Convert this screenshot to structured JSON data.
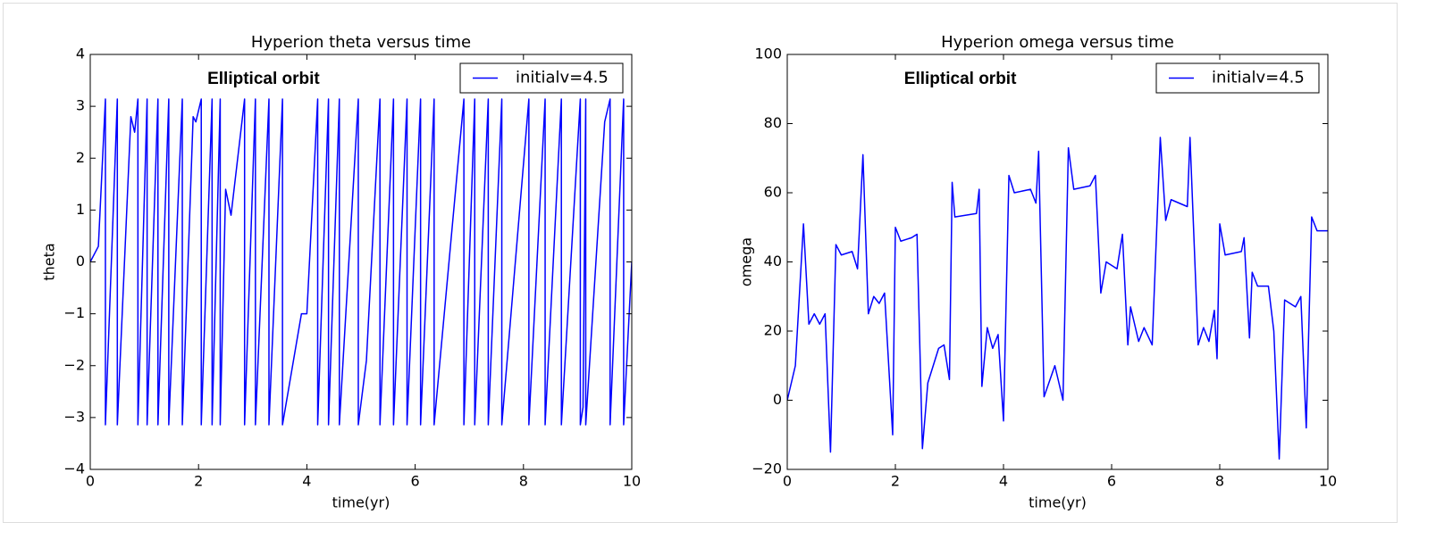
{
  "chart_data": [
    {
      "type": "line",
      "title": "Hyperion theta versus time",
      "xlabel": "time(yr)",
      "ylabel": "theta",
      "annotation": "Elliptical orbit",
      "legend": "upper right",
      "xlim": [
        0,
        10
      ],
      "ylim": [
        -4,
        4
      ],
      "xticks": [
        0,
        2,
        4,
        6,
        8,
        10
      ],
      "yticks": [
        {
          "value": -4,
          "label": "−4"
        },
        {
          "value": -3,
          "label": "−3"
        },
        {
          "value": -2,
          "label": "−2"
        },
        {
          "value": -1,
          "label": "−1"
        },
        0,
        1,
        2,
        3,
        4
      ],
      "x": [
        0,
        0.15,
        0.28,
        0.28,
        0.5,
        0.5,
        0.75,
        0.82,
        0.88,
        0.88,
        1.05,
        1.05,
        1.25,
        1.25,
        1.45,
        1.45,
        1.7,
        1.7,
        1.9,
        1.95,
        2.05,
        2.05,
        2.25,
        2.25,
        2.4,
        2.4,
        2.5,
        2.6,
        2.85,
        2.85,
        3.05,
        3.05,
        3.3,
        3.3,
        3.55,
        3.55,
        3.9,
        4.0,
        4.2,
        4.2,
        4.4,
        4.4,
        4.6,
        4.6,
        4.95,
        4.95,
        5.1,
        5.35,
        5.35,
        5.6,
        5.6,
        5.85,
        5.85,
        6.1,
        6.1,
        6.35,
        6.35,
        6.9,
        6.9,
        7.1,
        7.1,
        7.35,
        7.35,
        7.6,
        7.6,
        8.1,
        8.1,
        8.4,
        8.4,
        8.7,
        8.7,
        9.05,
        9.05,
        9.1,
        9.15,
        9.15,
        9.5,
        9.6,
        9.6,
        9.85,
        9.85,
        10.0
      ],
      "series": [
        {
          "name": "initialv=4.5",
          "color": "#0000ff",
          "values": [
            0,
            0.3,
            3.14,
            -3.14,
            3.14,
            -3.14,
            2.8,
            2.5,
            3.14,
            -3.14,
            3.14,
            -3.14,
            3.14,
            -3.14,
            3.14,
            -3.14,
            3.14,
            -3.14,
            2.8,
            2.7,
            3.14,
            -3.14,
            3.14,
            -3.14,
            3.14,
            -3.14,
            1.4,
            0.9,
            3.14,
            -3.14,
            3.14,
            -3.14,
            3.14,
            -3.14,
            3.14,
            -3.14,
            -1.0,
            -1.0,
            3.14,
            -3.14,
            3.14,
            -3.14,
            3.14,
            -3.14,
            3.14,
            -3.14,
            -1.9,
            3.14,
            -3.14,
            3.14,
            -3.14,
            3.14,
            -3.14,
            3.14,
            -3.14,
            3.14,
            -3.14,
            3.14,
            -3.14,
            3.14,
            -3.14,
            3.14,
            -3.14,
            3.14,
            -3.14,
            3.14,
            -3.14,
            3.14,
            -3.14,
            3.14,
            -3.14,
            3.14,
            -3.14,
            -2.8,
            3.14,
            -3.14,
            2.7,
            3.14,
            -3.14,
            3.14,
            -3.14,
            0.0
          ]
        }
      ]
    },
    {
      "type": "line",
      "title": "Hyperion omega versus time",
      "xlabel": "time(yr)",
      "ylabel": "omega",
      "annotation": "Elliptical orbit",
      "legend": "upper right",
      "xlim": [
        0,
        10
      ],
      "ylim": [
        -20,
        100
      ],
      "xticks": [
        0,
        2,
        4,
        6,
        8,
        10
      ],
      "yticks": [
        {
          "value": -20,
          "label": "−20"
        },
        0,
        20,
        40,
        60,
        80,
        100
      ],
      "x": [
        0,
        0.15,
        0.3,
        0.4,
        0.5,
        0.6,
        0.7,
        0.8,
        0.9,
        1.0,
        1.2,
        1.3,
        1.4,
        1.5,
        1.6,
        1.7,
        1.8,
        1.95,
        2.0,
        2.1,
        2.3,
        2.4,
        2.5,
        2.6,
        2.8,
        2.9,
        3.0,
        3.05,
        3.1,
        3.5,
        3.55,
        3.6,
        3.7,
        3.8,
        3.9,
        4.0,
        4.1,
        4.2,
        4.5,
        4.6,
        4.65,
        4.75,
        4.95,
        5.1,
        5.2,
        5.3,
        5.6,
        5.7,
        5.8,
        5.9,
        6.1,
        6.2,
        6.3,
        6.35,
        6.5,
        6.6,
        6.75,
        6.9,
        7.0,
        7.1,
        7.4,
        7.45,
        7.6,
        7.7,
        7.8,
        7.9,
        7.95,
        8.0,
        8.1,
        8.4,
        8.45,
        8.55,
        8.6,
        8.7,
        8.9,
        9.0,
        9.1,
        9.2,
        9.4,
        9.5,
        9.6,
        9.7,
        9.8,
        10.0
      ],
      "series": [
        {
          "name": "initialv=4.5",
          "color": "#0000ff",
          "values": [
            0,
            10,
            51,
            22,
            25,
            22,
            25,
            -15,
            45,
            42,
            43,
            38,
            71,
            25,
            30,
            28,
            31,
            -10,
            50,
            46,
            47,
            48,
            -14,
            5,
            15,
            16,
            6,
            63,
            53,
            54,
            61,
            4,
            21,
            15,
            19,
            -6,
            65,
            60,
            61,
            57,
            72,
            1,
            10,
            0,
            73,
            61,
            62,
            65,
            31,
            40,
            38,
            48,
            16,
            27,
            17,
            21,
            16,
            76,
            52,
            58,
            56,
            76,
            16,
            21,
            17,
            26,
            12,
            51,
            42,
            43,
            47,
            18,
            37,
            33,
            33,
            20,
            -17,
            29,
            27,
            30,
            -8,
            53,
            49,
            49
          ]
        }
      ]
    }
  ]
}
